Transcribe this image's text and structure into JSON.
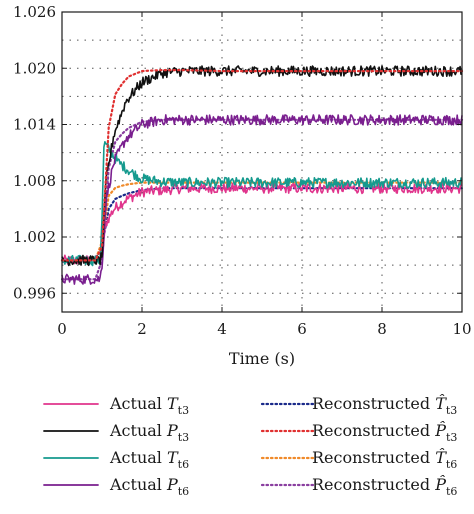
{
  "chart_data": {
    "type": "line",
    "xlabel": "Time (s)",
    "ylabel": "",
    "xlim": [
      0,
      10
    ],
    "ylim": [
      0.994,
      1.026
    ],
    "x_ticks": [
      0,
      2,
      4,
      6,
      8,
      10
    ],
    "x_tick_labels": [
      "0",
      "2",
      "4",
      "6",
      "8",
      "10"
    ],
    "y_ticks": [
      0.996,
      1.002,
      1.008,
      1.014,
      1.02,
      1.026
    ],
    "y_tick_labels": [
      "0.996",
      "1.002",
      "1.008",
      "1.014",
      "1.020",
      "1.026"
    ],
    "grid": true,
    "grid_style": "dotted",
    "legend_placement": "bottom",
    "series": [
      {
        "name": "Actual T t3",
        "label_main": "Actual ",
        "label_var": "T",
        "label_sub": "t3",
        "color": "#e0348c",
        "style": "solid",
        "x": [
          0,
          0.95,
          1.0,
          1.1,
          1.3,
          1.6,
          2.0,
          2.5,
          3.0,
          4.0,
          6.0,
          8.0,
          10.0
        ],
        "y": [
          0.9995,
          0.9995,
          1.0,
          1.0035,
          1.005,
          1.006,
          1.0068,
          1.007,
          1.0072,
          1.0072,
          1.0072,
          1.0072,
          1.0072
        ]
      },
      {
        "name": "Actual P t3",
        "label_main": "Actual ",
        "label_var": "P",
        "label_sub": "t3",
        "color": "#111111",
        "style": "solid",
        "x": [
          0,
          0.95,
          1.0,
          1.1,
          1.3,
          1.6,
          2.0,
          2.5,
          3.0,
          4.0,
          6.0,
          8.0,
          10.0
        ],
        "y": [
          0.9995,
          0.9995,
          1.0,
          1.008,
          1.013,
          1.0165,
          1.0185,
          1.0195,
          1.0197,
          1.0197,
          1.0197,
          1.0197,
          1.0197
        ]
      },
      {
        "name": "Actual T t6",
        "label_main": "Actual ",
        "label_var": "T",
        "label_sub": "t6",
        "color": "#159a8e",
        "style": "solid",
        "x": [
          0,
          0.95,
          1.0,
          1.05,
          1.15,
          1.4,
          1.7,
          2.0,
          2.5,
          3.0,
          4.0,
          6.0,
          8.0,
          10.0
        ],
        "y": [
          0.9995,
          0.9995,
          1.004,
          1.012,
          1.0115,
          1.01,
          1.009,
          1.0082,
          1.0079,
          1.0078,
          1.0078,
          1.0078,
          1.0078,
          1.0078
        ]
      },
      {
        "name": "Actual P t6",
        "label_main": "Actual ",
        "label_var": "P",
        "label_sub": "t6",
        "color": "#7a1f8f",
        "style": "solid",
        "x": [
          0,
          0.95,
          1.0,
          1.1,
          1.3,
          1.6,
          2.0,
          2.5,
          3.0,
          4.0,
          6.0,
          8.0,
          10.0
        ],
        "y": [
          0.9975,
          0.9975,
          0.999,
          1.006,
          1.01,
          1.0125,
          1.014,
          1.0145,
          1.0145,
          1.0145,
          1.0145,
          1.0145,
          1.0145
        ]
      },
      {
        "name": "Reconstructed T̂ t3",
        "label_main": "Reconstructed ",
        "label_var": "T̂",
        "label_sub": "t3",
        "color": "#1a2a8a",
        "style": "dotted",
        "x": [
          0,
          0.95,
          1.0,
          1.1,
          1.3,
          1.6,
          2.0,
          2.5,
          3.0,
          4.0,
          6.0,
          8.0,
          10.0
        ],
        "y": [
          0.9995,
          0.9995,
          1.001,
          1.0045,
          1.006,
          1.0066,
          1.007,
          1.0072,
          1.0072,
          1.0072,
          1.0072,
          1.0072,
          1.0072
        ]
      },
      {
        "name": "Reconstructed P̂ t3",
        "label_main": "Reconstructed ",
        "label_var": "P̂",
        "label_sub": "t3",
        "color": "#e03030",
        "style": "dotted",
        "x": [
          0,
          0.95,
          1.0,
          1.1,
          1.3,
          1.6,
          2.0,
          2.5,
          3.0,
          4.0,
          6.0,
          8.0,
          10.0
        ],
        "y": [
          0.9995,
          0.9995,
          1.001,
          1.012,
          1.017,
          1.019,
          1.0197,
          1.0198,
          1.0198,
          1.0197,
          1.0197,
          1.0197,
          1.0197
        ]
      },
      {
        "name": "Reconstructed T̂ t6",
        "label_main": "Reconstructed ",
        "label_var": "T̂",
        "label_sub": "t6",
        "color": "#f08a2a",
        "style": "dotted",
        "x": [
          0,
          0.95,
          1.0,
          1.1,
          1.3,
          1.6,
          2.0,
          2.5,
          3.0,
          4.0,
          6.0,
          8.0,
          10.0
        ],
        "y": [
          0.9995,
          0.9995,
          1.0015,
          1.006,
          1.0072,
          1.0076,
          1.0078,
          1.0078,
          1.0078,
          1.0078,
          1.0078,
          1.0078,
          1.0078
        ]
      },
      {
        "name": "Reconstructed P̂ t6",
        "label_main": "Reconstructed ",
        "label_var": "P̂",
        "label_sub": "t6",
        "color": "#8a3fa0",
        "style": "dotted",
        "x": [
          0,
          0.95,
          1.0,
          1.1,
          1.3,
          1.6,
          2.0,
          2.5,
          3.0,
          4.0,
          6.0,
          8.0,
          10.0
        ],
        "y": [
          0.9975,
          0.9975,
          0.9995,
          1.008,
          1.012,
          1.0135,
          1.0143,
          1.0145,
          1.0145,
          1.0145,
          1.0145,
          1.0145,
          1.0145
        ]
      }
    ]
  }
}
